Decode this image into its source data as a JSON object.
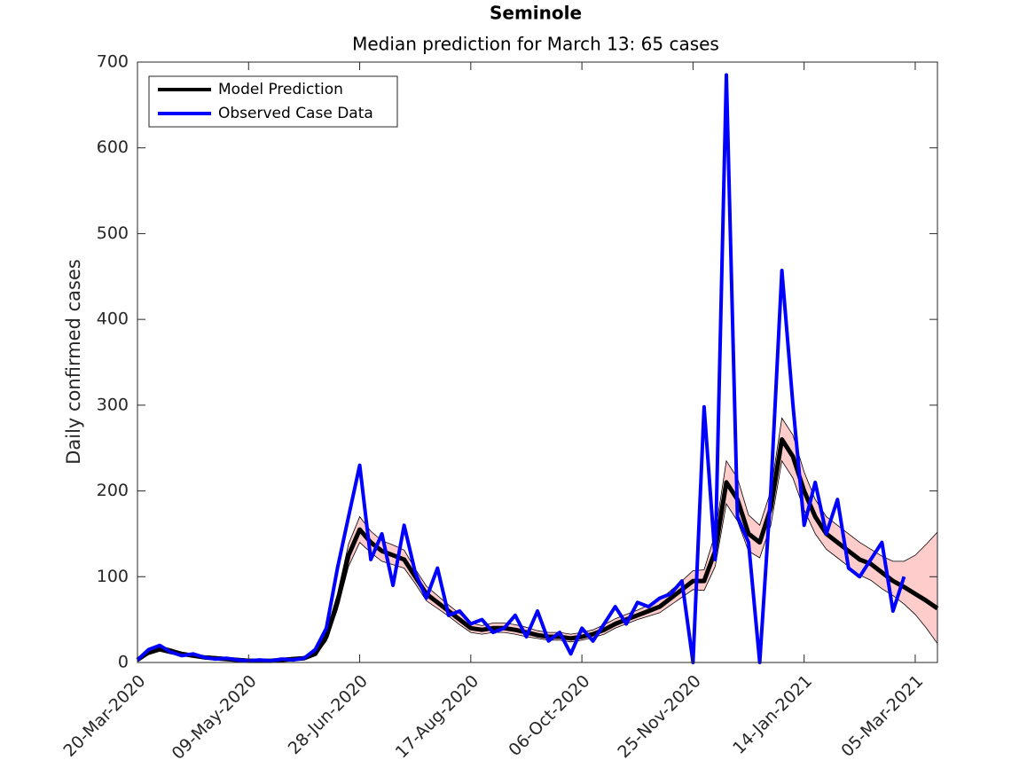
{
  "chart_data": {
    "type": "line",
    "title": "Seminole",
    "subtitle": "Median prediction for March 13: 65 cases",
    "y_label": "Daily confirmed cases",
    "x": [
      "20-Mar-2020",
      "25-Mar-2020",
      "30-Mar-2020",
      "04-Apr-2020",
      "09-Apr-2020",
      "14-Apr-2020",
      "19-Apr-2020",
      "24-Apr-2020",
      "29-Apr-2020",
      "04-May-2020",
      "09-May-2020",
      "14-May-2020",
      "19-May-2020",
      "24-May-2020",
      "29-May-2020",
      "03-Jun-2020",
      "08-Jun-2020",
      "13-Jun-2020",
      "18-Jun-2020",
      "23-Jun-2020",
      "28-Jun-2020",
      "03-Jul-2020",
      "08-Jul-2020",
      "13-Jul-2020",
      "18-Jul-2020",
      "23-Jul-2020",
      "28-Jul-2020",
      "02-Aug-2020",
      "07-Aug-2020",
      "12-Aug-2020",
      "17-Aug-2020",
      "22-Aug-2020",
      "27-Aug-2020",
      "01-Sep-2020",
      "06-Sep-2020",
      "11-Sep-2020",
      "16-Sep-2020",
      "21-Sep-2020",
      "26-Sep-2020",
      "01-Oct-2020",
      "06-Oct-2020",
      "11-Oct-2020",
      "16-Oct-2020",
      "21-Oct-2020",
      "26-Oct-2020",
      "31-Oct-2020",
      "05-Nov-2020",
      "10-Nov-2020",
      "15-Nov-2020",
      "20-Nov-2020",
      "25-Nov-2020",
      "30-Nov-2020",
      "05-Dec-2020",
      "10-Dec-2020",
      "15-Dec-2020",
      "20-Dec-2020",
      "25-Dec-2020",
      "30-Dec-2020",
      "04-Jan-2021",
      "09-Jan-2021",
      "14-Jan-2021",
      "19-Jan-2021",
      "24-Jan-2021",
      "29-Jan-2021",
      "03-Feb-2021",
      "08-Feb-2021",
      "13-Feb-2021",
      "18-Feb-2021",
      "23-Feb-2021",
      "28-Feb-2021",
      "05-Mar-2021",
      "10-Mar-2021",
      "15-Mar-2021"
    ],
    "interval": {
      "color": "#ffcccc",
      "lower": [
        1,
        9,
        13,
        10,
        8,
        6,
        4,
        3,
        3,
        2,
        1,
        1,
        1,
        2,
        3,
        4,
        8,
        25,
        62,
        112,
        140,
        128,
        118,
        114,
        110,
        92,
        72,
        63,
        54,
        44,
        35,
        33,
        35,
        35,
        33,
        30,
        28,
        26,
        26,
        24,
        26,
        29,
        33,
        40,
        45,
        50,
        54,
        58,
        67,
        76,
        85,
        84,
        112,
        185,
        165,
        130,
        122,
        160,
        235,
        215,
        178,
        150,
        132,
        122,
        112,
        102,
        96,
        86,
        78,
        68,
        56,
        40,
        22
      ],
      "upper": [
        5,
        15,
        19,
        16,
        12,
        10,
        8,
        7,
        6,
        5,
        4,
        4,
        3,
        5,
        6,
        7,
        13,
        36,
        80,
        138,
        170,
        153,
        142,
        137,
        131,
        109,
        89,
        78,
        67,
        57,
        46,
        43,
        46,
        46,
        44,
        41,
        37,
        35,
        35,
        33,
        35,
        38,
        44,
        51,
        56,
        61,
        67,
        73,
        84,
        95,
        107,
        108,
        150,
        235,
        215,
        172,
        160,
        200,
        285,
        265,
        222,
        190,
        170,
        160,
        150,
        140,
        132,
        124,
        118,
        118,
        125,
        138,
        152
      ]
    },
    "series": [
      {
        "name": "Model Prediction",
        "color": "#000000",
        "values": [
          3,
          12,
          16,
          13,
          10,
          8,
          6,
          5,
          4,
          3,
          2,
          2,
          2,
          3,
          4,
          5,
          10,
          30,
          70,
          125,
          155,
          140,
          130,
          125,
          120,
          100,
          80,
          70,
          60,
          50,
          40,
          38,
          40,
          40,
          38,
          35,
          32,
          30,
          30,
          28,
          30,
          33,
          38,
          45,
          50,
          55,
          60,
          65,
          75,
          85,
          95,
          95,
          130,
          210,
          190,
          150,
          140,
          180,
          260,
          240,
          200,
          170,
          150,
          140,
          130,
          120,
          115,
          105,
          95,
          88,
          80,
          72,
          63
        ]
      },
      {
        "name": "Observed Case Data",
        "color": "#0000ff",
        "values": [
          3,
          15,
          20,
          12,
          8,
          10,
          6,
          4,
          5,
          3,
          2,
          3,
          2,
          4,
          3,
          5,
          15,
          40,
          110,
          170,
          230,
          120,
          150,
          90,
          160,
          105,
          75,
          110,
          55,
          60,
          45,
          50,
          35,
          40,
          55,
          30,
          60,
          25,
          35,
          10,
          40,
          25,
          45,
          65,
          45,
          70,
          65,
          75,
          80,
          95,
          0,
          298,
          120,
          685,
          170,
          140,
          0,
          200,
          457,
          300,
          160,
          210,
          150,
          190,
          110,
          100,
          120,
          140,
          60,
          100,
          null,
          null,
          null
        ]
      }
    ],
    "xlim": [
      "20-Mar-2020",
      "15-Mar-2021"
    ],
    "xticks": [
      "20-Mar-2020",
      "09-May-2020",
      "28-Jun-2020",
      "17-Aug-2020",
      "06-Oct-2020",
      "25-Nov-2020",
      "14-Jan-2021",
      "05-Mar-2021"
    ],
    "ylim": [
      0,
      700
    ],
    "yticks": [
      0,
      100,
      200,
      300,
      400,
      500,
      600,
      700
    ],
    "legend": "upper left"
  }
}
